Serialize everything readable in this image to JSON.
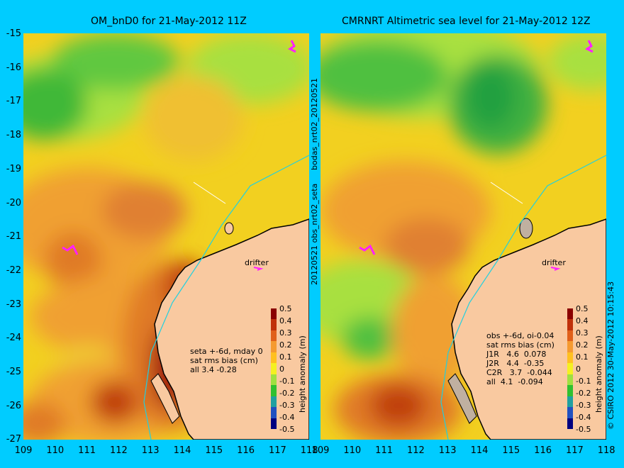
{
  "panels": [
    {
      "title": "OM_bnD0 for 21-May-2012 11Z",
      "drifter_label": "drifter",
      "annotation": [
        "seta +-6d, mday 0",
        "sat rms bias (cm)",
        "all 3.4 -0.28"
      ]
    },
    {
      "title": "CMRNRT Altimetric sea level  for 21-May-2012 12Z",
      "drifter_label": "drifter",
      "annotation": [
        "obs +-6d, oi-0.04",
        "sat rms bias (cm)",
        "J1R   4.6  0.078",
        "J2R   4.4  -0.35",
        "C2R   3.7  -0.044",
        "all  4.1  -0.094"
      ]
    }
  ],
  "y_ticks": [
    "-15",
    "-16",
    "-17",
    "-18",
    "-19",
    "-20",
    "-21",
    "-22",
    "-23",
    "-24",
    "-25",
    "-26",
    "-27"
  ],
  "x_ticks": [
    "109",
    "110",
    "111",
    "112",
    "113",
    "114",
    "115",
    "116",
    "117",
    "118"
  ],
  "colorbar": {
    "label": "height anomaly (m)",
    "ticks": [
      "0.5",
      "0.4",
      "0.3",
      "0.2",
      "0.1",
      "0",
      "-0.1",
      "-0.2",
      "-0.3",
      "-0.4",
      "-0.5"
    ],
    "colors": [
      "#8b0000",
      "#c0300a",
      "#e0601a",
      "#f59a30",
      "#ffc020",
      "#f5f020",
      "#a0e040",
      "#30c030",
      "#20a0a0",
      "#2050c0",
      "#000080"
    ]
  },
  "side_texts": {
    "left_upper": "bodas_nrt02_20120521",
    "left_lower": "20120521 obs_nrt02_seta",
    "right": "© CSIRO 2012   30-May-2012 10:15:43"
  }
}
